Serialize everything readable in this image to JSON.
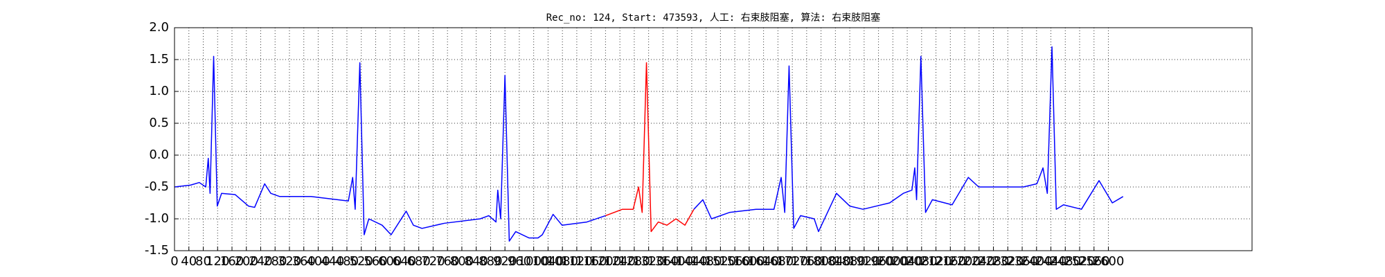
{
  "chart_data": {
    "type": "line",
    "title": "Rec_no: 124, Start: 473593, 人工: 右束肢阻塞, 算法: 右束肢阻塞",
    "x": [
      0,
      45,
      69,
      87,
      94,
      99,
      109,
      119,
      131,
      169,
      206,
      223,
      251,
      268,
      293,
      380,
      454,
      484,
      496,
      503,
      516,
      528,
      541,
      578,
      603,
      645,
      665,
      689,
      751,
      851,
      875,
      895,
      900,
      908,
      920,
      932,
      950,
      987,
      1012,
      1024,
      1054,
      1079,
      1148,
      1200,
      1247,
      1277,
      1292,
      1302,
      1314,
      1327,
      1347,
      1371,
      1396,
      1421,
      1446,
      1471,
      1495,
      1545,
      1619,
      1669,
      1689,
      1699,
      1711,
      1724,
      1743,
      1781,
      1793,
      1843,
      1880,
      1917,
      1991,
      2029,
      2053,
      2061,
      2066,
      2078,
      2091,
      2110,
      2165,
      2210,
      2239,
      2363,
      2401,
      2418,
      2430,
      2443,
      2455,
      2475,
      2525,
      2574,
      2611,
      2641
    ],
    "series": [
      {
        "color": "#0000ff",
        "values": [
          -0.5,
          -0.47,
          -0.43,
          -0.5,
          -0.05,
          -0.6,
          1.55,
          -0.8,
          -0.6,
          -0.62,
          -0.8,
          -0.82,
          -0.45,
          -0.6,
          -0.65,
          -0.65,
          -0.7,
          -0.72,
          -0.35,
          -0.85,
          1.45,
          -1.25,
          -1.0,
          -1.1,
          -1.25,
          -0.88,
          -1.1,
          -1.15,
          -1.07,
          -1.0,
          -0.95,
          -1.05,
          -0.55,
          -1.0,
          1.25,
          -1.35,
          -1.2,
          -1.3,
          -1.3,
          -1.25,
          -0.93,
          -1.1,
          -1.05,
          -0.95,
          null,
          null,
          null,
          null,
          null,
          null,
          null,
          null,
          null,
          null,
          -0.85,
          -0.7,
          -1.0,
          -0.9,
          -0.85,
          -0.85,
          -0.35,
          -0.9,
          1.4,
          -1.15,
          -0.95,
          -1.0,
          -1.2,
          -0.6,
          -0.8,
          -0.85,
          -0.75,
          -0.6,
          -0.55,
          -0.2,
          -0.7,
          1.55,
          -0.9,
          -0.7,
          -0.78,
          -0.35,
          -0.5,
          -0.5,
          -0.45,
          -0.2,
          -0.6,
          1.7,
          -0.85,
          -0.78,
          -0.85,
          -0.4,
          -0.75,
          -0.65
        ]
      },
      {
        "color": "#ff0000",
        "values": [
          null,
          null,
          null,
          null,
          null,
          null,
          null,
          null,
          null,
          null,
          null,
          null,
          null,
          null,
          null,
          null,
          null,
          null,
          null,
          null,
          null,
          null,
          null,
          null,
          null,
          null,
          null,
          null,
          null,
          null,
          null,
          null,
          null,
          null,
          null,
          null,
          null,
          null,
          null,
          null,
          null,
          null,
          null,
          -0.95,
          -0.85,
          -0.85,
          -0.5,
          -0.9,
          1.45,
          -1.2,
          -1.05,
          -1.1,
          -1.0,
          -1.1,
          -0.85,
          null,
          null,
          null,
          null,
          null,
          null,
          null,
          null,
          null,
          null,
          null,
          null,
          null,
          null,
          null,
          null,
          null,
          null,
          null,
          null,
          null,
          null,
          null,
          null,
          null,
          null,
          null,
          null,
          null,
          null,
          null,
          null,
          null,
          null,
          null,
          null,
          null
        ]
      }
    ],
    "xlim": [
      0,
      3000
    ],
    "xticks": [
      0,
      40,
      80,
      120,
      160,
      200,
      240,
      280,
      320,
      360,
      400,
      440,
      480,
      520,
      560,
      600,
      640,
      680,
      720,
      760,
      800,
      840,
      880,
      920,
      960,
      1000,
      1040,
      1080,
      1120,
      1160,
      1200,
      1240,
      1280,
      1320,
      1360,
      1400,
      1440,
      1480,
      1520,
      1560,
      1600,
      1640,
      1680,
      1720,
      1760,
      1800,
      1840,
      1880,
      1920,
      1960,
      2000,
      2040,
      2080,
      2120,
      2160,
      2200,
      2240,
      2280,
      2320,
      2360,
      2400,
      2440,
      2480,
      2520,
      2560,
      2600
    ],
    "ylim": [
      -1.5,
      2.0
    ],
    "yticks": [
      {
        "value": -1.5,
        "label": "-1.5"
      },
      {
        "value": -1.0,
        "label": "-1.0"
      },
      {
        "value": -0.5,
        "label": "-0.5"
      },
      {
        "value": 0.0,
        "label": "0.0"
      },
      {
        "value": 0.5,
        "label": "0.5"
      },
      {
        "value": 1.0,
        "label": "1.0"
      },
      {
        "value": 1.5,
        "label": "1.5"
      },
      {
        "value": 2.0,
        "label": "2.0"
      }
    ],
    "grid": true
  }
}
